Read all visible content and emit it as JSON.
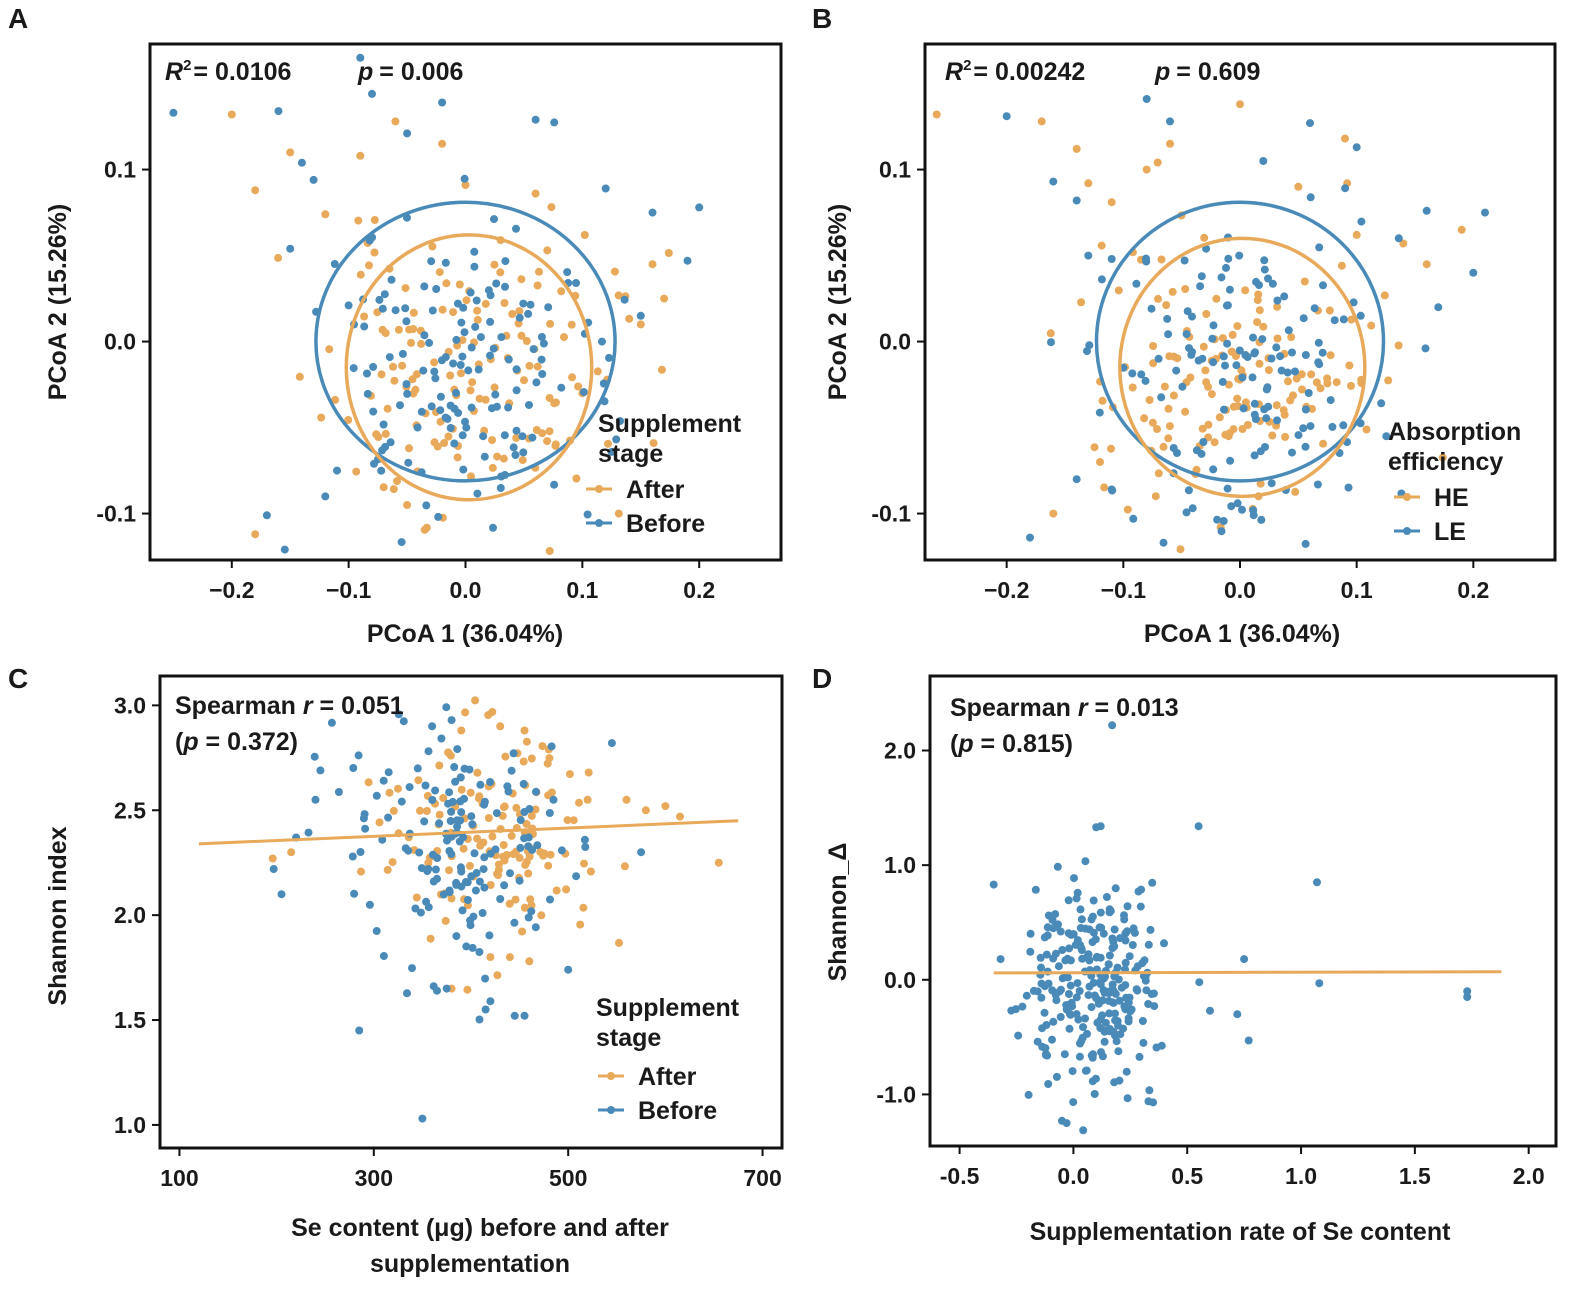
{
  "colors": {
    "after": "#e8a95a",
    "before": "#4a8ab8",
    "trend": "#e8a95a",
    "axis": "#111111"
  },
  "chart_data": [
    {
      "panel": "A",
      "type": "scatter",
      "stats": {
        "r2_label": "R",
        "r2_sup": "2",
        "r2_value": "= 0.0106",
        "p_label": "p",
        "p_value": "= 0.006"
      },
      "xlabel": "PCoA 1 (36.04%)",
      "ylabel": "PCoA 2 (15.26%)",
      "xlim": [
        -0.27,
        0.27
      ],
      "ylim": [
        -0.127,
        0.173
      ],
      "xticks": [
        -0.2,
        -0.1,
        0.0,
        0.1,
        0.2
      ],
      "xtick_labels": [
        "−0.2",
        "−0.1",
        "0.0",
        "0.1",
        "0.2"
      ],
      "yticks": [
        0.1,
        0.0,
        -0.1
      ],
      "ytick_labels": [
        "0.1",
        "0.0",
        "-0.1"
      ],
      "legend": {
        "title": [
          "Supplement",
          "stage"
        ],
        "entries": [
          "After",
          "Before"
        ],
        "position": "bottom-right"
      },
      "ellipses": [
        {
          "group": "Before",
          "cx": 0.0,
          "cy": 0.0,
          "rx": 0.128,
          "ry": 0.081
        },
        {
          "group": "After",
          "cx": 0.003,
          "cy": -0.015,
          "rx": 0.105,
          "ry": 0.077
        }
      ],
      "series": [
        {
          "name": "After",
          "seed": 11,
          "count": 150,
          "center": [
            0.0,
            -0.02
          ],
          "spread": [
            0.06,
            0.04
          ],
          "x": [
            -0.2,
            -0.18,
            -0.15,
            -0.18,
            -0.12,
            -0.09,
            -0.06,
            -0.02,
            0.0,
            0.06,
            0.1,
            0.15,
            0.17,
            0.16,
            0.07,
            0.03,
            -0.05
          ],
          "y": [
            0.132,
            -0.112,
            0.11,
            0.088,
            0.074,
            0.108,
            0.128,
            0.115,
            0.091,
            0.086,
            -0.03,
            0.01,
            0.025,
            0.045,
            0.053,
            0.059,
            -0.095
          ]
        },
        {
          "name": "Before",
          "seed": 23,
          "count": 150,
          "center": [
            0.0,
            -0.02
          ],
          "spread": [
            0.06,
            0.045
          ],
          "x": [
            -0.25,
            -0.17,
            -0.16,
            -0.14,
            -0.13,
            -0.12,
            -0.09,
            -0.08,
            -0.05,
            -0.02,
            0.06,
            0.12,
            0.16,
            0.19,
            0.2,
            0.15,
            -0.1,
            -0.11,
            -0.15
          ],
          "y": [
            0.133,
            -0.101,
            0.134,
            0.104,
            0.094,
            -0.09,
            0.165,
            0.144,
            0.121,
            0.139,
            0.129,
            0.089,
            0.075,
            0.047,
            0.078,
            0.015,
            0.021,
            -0.075,
            0.054
          ]
        }
      ]
    },
    {
      "panel": "B",
      "type": "scatter",
      "stats": {
        "r2_label": "R",
        "r2_sup": "2",
        "r2_value": "= 0.00242",
        "p_label": "p",
        "p_value": "= 0.609"
      },
      "xlabel": "PCoA 1 (36.04%)",
      "ylabel": "PCoA 2 (15.26%)",
      "xlim": [
        -0.27,
        0.27
      ],
      "ylim": [
        -0.127,
        0.173
      ],
      "xticks": [
        -0.2,
        -0.1,
        0.0,
        0.1,
        0.2
      ],
      "xtick_labels": [
        "−0.2",
        "−0.1",
        "0.0",
        "0.1",
        "0.2"
      ],
      "yticks": [
        0.1,
        0.0,
        -0.1
      ],
      "ytick_labels": [
        "0.1",
        "0.0",
        "-0.1"
      ],
      "legend": {
        "title": [
          "Absorption",
          "efficiency"
        ],
        "entries": [
          "HE",
          "LE"
        ],
        "position": "bottom-right"
      },
      "ellipses": [
        {
          "group": "LE",
          "cx": 0.0,
          "cy": 0.0,
          "rx": 0.123,
          "ry": 0.081
        },
        {
          "group": "HE",
          "cx": 0.002,
          "cy": -0.015,
          "rx": 0.105,
          "ry": 0.075
        }
      ],
      "series": [
        {
          "name": "HE",
          "seed": 37,
          "count": 150,
          "center": [
            0.0,
            -0.02
          ],
          "spread": [
            0.06,
            0.04
          ],
          "x": [
            -0.26,
            -0.17,
            -0.16,
            -0.14,
            -0.13,
            -0.11,
            -0.08,
            -0.06,
            0.0,
            0.05,
            0.09,
            0.1,
            0.14,
            0.16,
            0.19,
            -0.12
          ],
          "y": [
            0.132,
            0.128,
            -0.1,
            0.112,
            0.092,
            0.081,
            0.1,
            0.115,
            0.138,
            0.09,
            0.118,
            0.062,
            0.057,
            0.045,
            0.065,
            -0.07
          ]
        },
        {
          "name": "LE",
          "seed": 53,
          "count": 150,
          "center": [
            0.0,
            -0.02
          ],
          "spread": [
            0.06,
            0.045
          ],
          "x": [
            -0.2,
            -0.18,
            -0.16,
            -0.14,
            -0.13,
            -0.11,
            -0.08,
            -0.06,
            0.02,
            0.06,
            0.1,
            0.16,
            0.2,
            0.21,
            0.17,
            -0.11,
            -0.14
          ],
          "y": [
            0.131,
            -0.114,
            0.093,
            0.082,
            0.05,
            -0.086,
            0.141,
            0.128,
            0.105,
            0.127,
            0.113,
            0.076,
            0.04,
            0.075,
            0.02,
            0.048,
            -0.08
          ]
        }
      ]
    },
    {
      "panel": "C",
      "type": "scatter",
      "stats": {
        "line1_a": "Spearman ",
        "line1_r": "r",
        "line1_b": " = 0.051",
        "line2_a": "(",
        "line2_p": "p",
        "line2_b": " = 0.372)"
      },
      "xlabel": [
        "Se content (μg) before and after",
        "supplementation"
      ],
      "ylabel": "Shannon index",
      "xlim": [
        80,
        720
      ],
      "ylim": [
        0.89,
        3.14
      ],
      "xticks": [
        100,
        300,
        500,
        700
      ],
      "xtick_labels": [
        "100",
        "300",
        "500",
        "700"
      ],
      "yticks": [
        3.0,
        2.5,
        2.0,
        1.5,
        1.0
      ],
      "ytick_labels": [
        "3.0",
        "2.5",
        "2.0",
        "1.5",
        "1.0"
      ],
      "trend": {
        "x": [
          120,
          675
        ],
        "y": [
          2.34,
          2.45
        ]
      },
      "legend": {
        "title": [
          "Supplement",
          "stage"
        ],
        "entries": [
          "After",
          "Before"
        ],
        "position": "bottom-right"
      },
      "series": [
        {
          "name": "After",
          "seed": 71,
          "count": 140,
          "center": [
            420,
            2.4
          ],
          "spread": [
            60,
            0.25
          ],
          "x": [
            196,
            215,
            455,
            480,
            520,
            560,
            580,
            600,
            615,
            655,
            380,
            420,
            440,
            460,
            390,
            430
          ],
          "y": [
            2.27,
            2.3,
            2.88,
            2.79,
            2.55,
            2.55,
            2.5,
            2.52,
            2.47,
            2.25,
            1.65,
            1.8,
            1.8,
            1.78,
            2.88,
            2.9
          ]
        },
        {
          "name": "Before",
          "seed": 89,
          "count": 150,
          "center": [
            380,
            2.35
          ],
          "spread": [
            55,
            0.27
          ],
          "x": [
            197,
            205,
            220,
            245,
            285,
            350,
            365,
            375,
            385,
            415,
            420,
            445,
            455,
            500,
            545,
            575,
            360,
            380,
            240
          ],
          "y": [
            2.22,
            2.1,
            2.37,
            2.69,
            1.45,
            1.03,
            1.64,
            1.65,
            1.9,
            1.55,
            1.59,
            1.52,
            1.52,
            1.74,
            2.82,
            2.3,
            2.9,
            2.93,
            2.55
          ]
        }
      ]
    },
    {
      "panel": "D",
      "type": "scatter",
      "stats": {
        "line1_a": "Spearman ",
        "line1_r": "r",
        "line1_b": " = 0.013",
        "line2_a": "(",
        "line2_p": "p",
        "line2_b": " = 0.815)"
      },
      "xlabel": "Supplementation rate of Se content",
      "ylabel": "Shannon_Δ",
      "xlim": [
        -0.63,
        2.12
      ],
      "ylim": [
        -1.45,
        2.65
      ],
      "xticks": [
        -0.5,
        0.0,
        0.5,
        1.0,
        1.5,
        2.0
      ],
      "xtick_labels": [
        "-0.5",
        "0.0",
        "0.5",
        "1.0",
        "1.5",
        "2.0"
      ],
      "yticks": [
        2.0,
        1.0,
        0.0,
        -1.0
      ],
      "ytick_labels": [
        "2.0",
        "1.0",
        "0.0",
        "-1.0"
      ],
      "trend": {
        "x": [
          -0.35,
          1.88
        ],
        "y": [
          0.06,
          0.07
        ]
      },
      "series": [
        {
          "name": "Shannon_Δ",
          "seed": 101,
          "count": 260,
          "center": [
            0.1,
            0.0
          ],
          "spread": [
            0.14,
            0.45
          ],
          "x": [
            -0.35,
            -0.32,
            0.17,
            0.55,
            0.12,
            0.1,
            0.6,
            0.72,
            0.77,
            1.07,
            1.08,
            1.73,
            1.73,
            -0.05,
            -0.03,
            0.33,
            0.35,
            0.75
          ],
          "y": [
            0.83,
            0.18,
            2.22,
            1.34,
            1.34,
            1.33,
            -0.27,
            -0.3,
            -0.53,
            0.85,
            -0.03,
            -0.1,
            -0.15,
            -1.23,
            -1.25,
            -1.06,
            -1.07,
            0.18
          ]
        }
      ]
    }
  ]
}
